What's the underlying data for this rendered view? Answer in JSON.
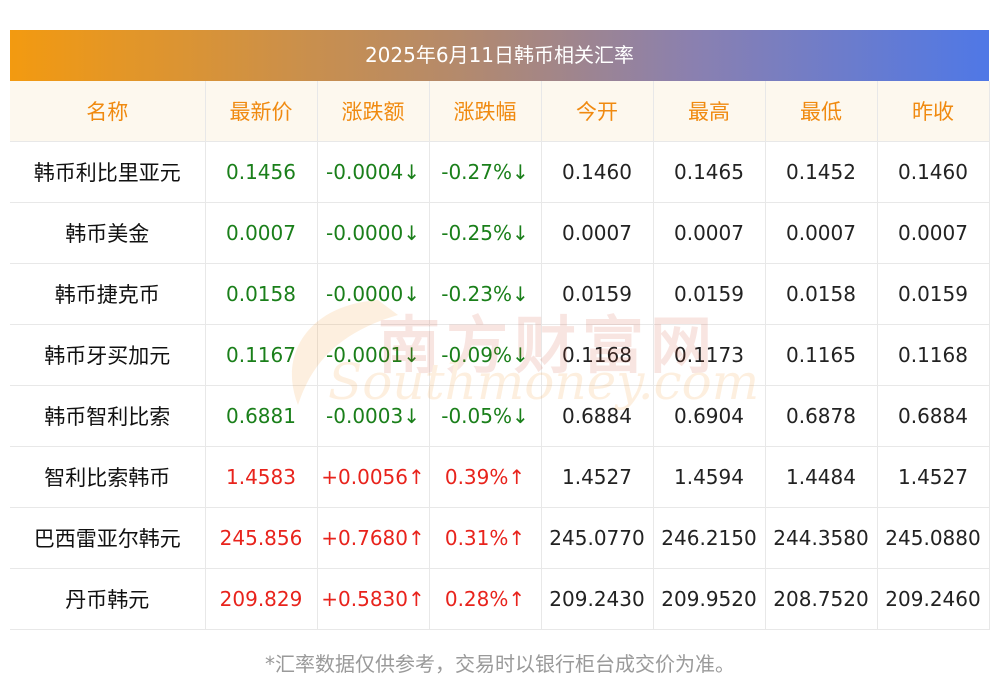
{
  "title": "2025年6月11日韩币相关汇率",
  "headers": [
    "名称",
    "最新价",
    "涨跌额",
    "涨跌幅",
    "今开",
    "最高",
    "最低",
    "昨收"
  ],
  "rows": [
    {
      "name": "韩币利比里亚元",
      "latest": "0.1456",
      "change": "-0.0004↓",
      "pct": "-0.27%↓",
      "open": "0.1460",
      "high": "0.1465",
      "low": "0.1452",
      "prev": "0.1460",
      "dir": "down"
    },
    {
      "name": "韩币美金",
      "latest": "0.0007",
      "change": "-0.0000↓",
      "pct": "-0.25%↓",
      "open": "0.0007",
      "high": "0.0007",
      "low": "0.0007",
      "prev": "0.0007",
      "dir": "down"
    },
    {
      "name": "韩币捷克币",
      "latest": "0.0158",
      "change": "-0.0000↓",
      "pct": "-0.23%↓",
      "open": "0.0159",
      "high": "0.0159",
      "low": "0.0158",
      "prev": "0.0159",
      "dir": "down"
    },
    {
      "name": "韩币牙买加元",
      "latest": "0.1167",
      "change": "-0.0001↓",
      "pct": "-0.09%↓",
      "open": "0.1168",
      "high": "0.1173",
      "low": "0.1165",
      "prev": "0.1168",
      "dir": "down"
    },
    {
      "name": "韩币智利比索",
      "latest": "0.6881",
      "change": "-0.0003↓",
      "pct": "-0.05%↓",
      "open": "0.6884",
      "high": "0.6904",
      "low": "0.6878",
      "prev": "0.6884",
      "dir": "down"
    },
    {
      "name": "智利比索韩币",
      "latest": "1.4583",
      "change": "+0.0056↑",
      "pct": "0.39%↑",
      "open": "1.4527",
      "high": "1.4594",
      "low": "1.4484",
      "prev": "1.4527",
      "dir": "up"
    },
    {
      "name": "巴西雷亚尔韩元",
      "latest": "245.856",
      "change": "+0.7680↑",
      "pct": "0.31%↑",
      "open": "245.0770",
      "high": "246.2150",
      "low": "244.3580",
      "prev": "245.0880",
      "dir": "up"
    },
    {
      "name": "丹币韩元",
      "latest": "209.829",
      "change": "+0.5830↑",
      "pct": "0.28%↑",
      "open": "209.2430",
      "high": "209.9520",
      "low": "208.7520",
      "prev": "209.2460",
      "dir": "up"
    }
  ],
  "note": "*汇率数据仅供参考，交易时以银行柜台成交价为准。",
  "watermark": {
    "cn": "南方财富网",
    "en": "Southmoney.com"
  },
  "colors": {
    "down": "#1a7f1a",
    "up": "#e8231c",
    "header_text": "#f08a10"
  }
}
